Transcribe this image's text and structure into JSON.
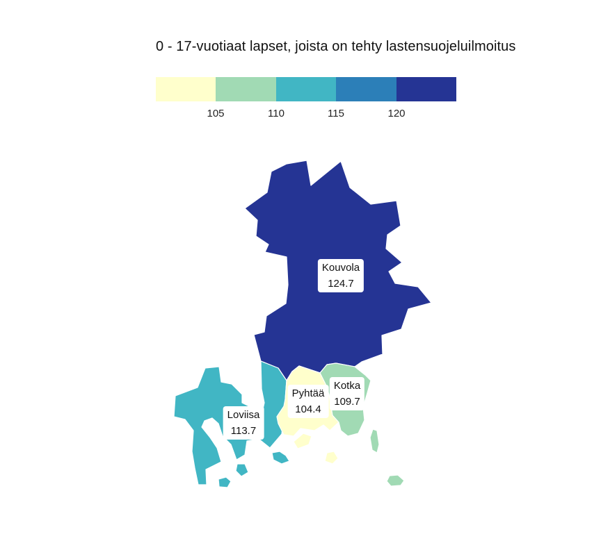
{
  "title": "0 - 17-vuotiaat lapset, joista on tehty lastensuojeluilmoitus",
  "legend": {
    "colors": [
      "#ffffcc",
      "#a1dab4",
      "#41b6c4",
      "#2c7fb8",
      "#253494"
    ],
    "ticks": [
      "105",
      "110",
      "115",
      "120"
    ]
  },
  "regions": [
    {
      "name": "Kouvola",
      "value": "124.7",
      "color": "#253494"
    },
    {
      "name": "Loviisa",
      "value": "113.7",
      "color": "#41b6c4"
    },
    {
      "name": "Pyhtää",
      "value": "104.4",
      "color": "#ffffcc"
    },
    {
      "name": "Kotka",
      "value": "109.7",
      "color": "#a1dab4"
    }
  ]
}
